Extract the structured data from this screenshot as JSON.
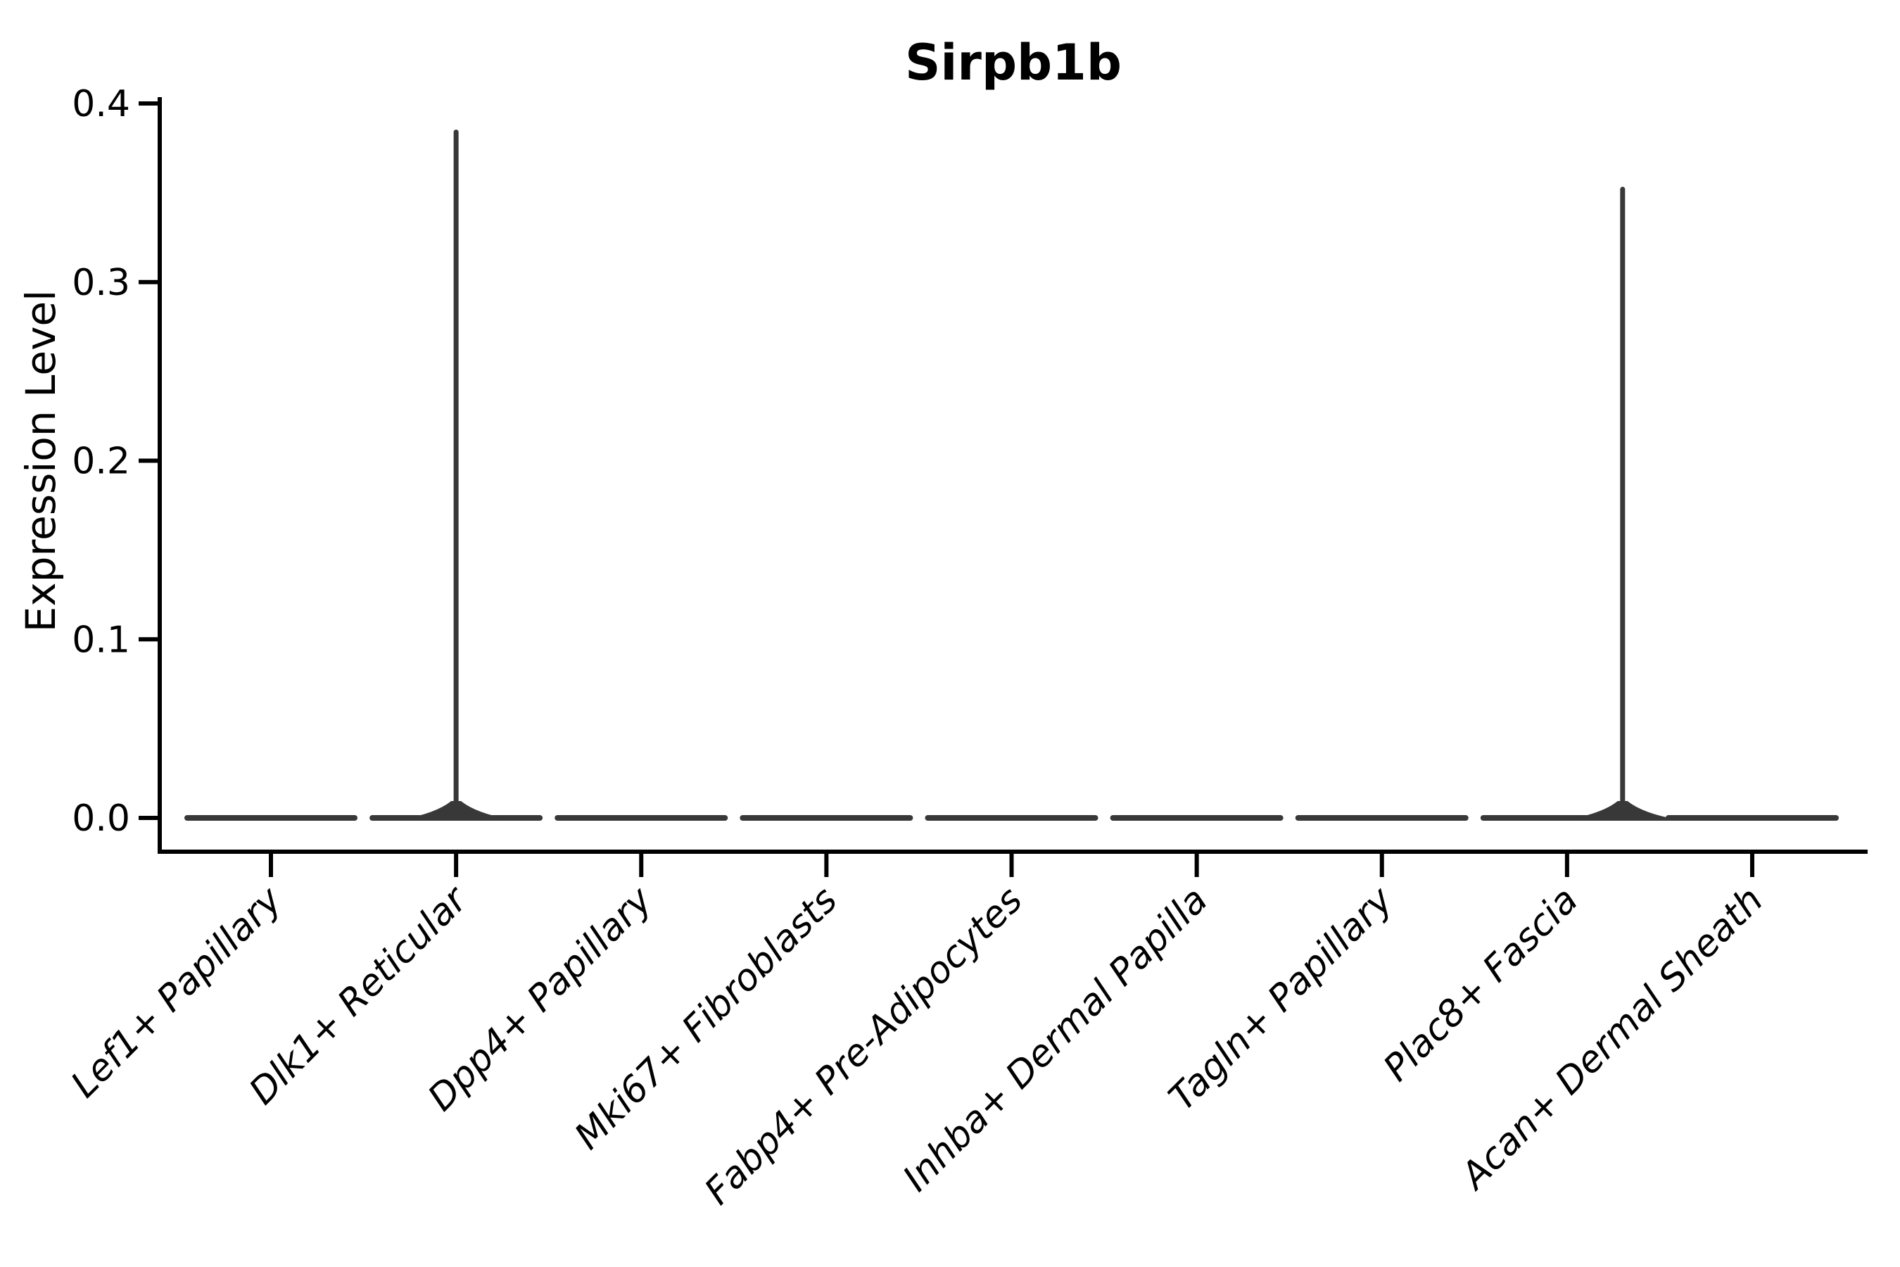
{
  "chart_data": {
    "type": "violin",
    "title": "Sirpb1b",
    "xlabel": "",
    "ylabel": "Expression Level",
    "yticks": [
      0.0,
      0.1,
      0.2,
      0.3,
      0.4
    ],
    "ylim": [
      -0.019,
      0.409
    ],
    "grid": false,
    "legend_position": "none",
    "categories": [
      "Lef1+ Papillary",
      "Dlk1+ Reticular",
      "Dpp4+ Papillary",
      "Mki67+ Fibroblasts",
      "Fabp4+ Pre-Adipocytes",
      "Inhba+ Dermal Papilla",
      "Tagln+ Papillary",
      "Plac8+ Fascia",
      "Acan+ Dermal Sheath"
    ],
    "violins": [
      {
        "category": "Lef1+ Papillary",
        "body_value": 0.0,
        "max": 0.0,
        "spike_offset_frac": 0.0
      },
      {
        "category": "Dlk1+ Reticular",
        "body_value": 0.0,
        "max": 0.384,
        "spike_offset_frac": 0.0
      },
      {
        "category": "Dpp4+ Papillary",
        "body_value": 0.0,
        "max": 0.0,
        "spike_offset_frac": 0.0
      },
      {
        "category": "Mki67+ Fibroblasts",
        "body_value": 0.0,
        "max": 0.0,
        "spike_offset_frac": 0.0
      },
      {
        "category": "Fabp4+ Pre-Adipocytes",
        "body_value": 0.0,
        "max": 0.0,
        "spike_offset_frac": 0.0
      },
      {
        "category": "Inhba+ Dermal Papilla",
        "body_value": 0.0,
        "max": 0.0,
        "spike_offset_frac": 0.0
      },
      {
        "category": "Tagln+ Papillary",
        "body_value": 0.0,
        "max": 0.0,
        "spike_offset_frac": 0.0
      },
      {
        "category": "Plac8+ Fascia",
        "body_value": 0.0,
        "max": 0.352,
        "spike_offset_frac": 0.3
      },
      {
        "category": "Acan+ Dermal Sheath",
        "body_value": 0.0,
        "max": 0.0,
        "spike_offset_frac": 0.0
      }
    ],
    "style": {
      "violin_color": "#383838",
      "axis_color": "#000000",
      "text_color": "#000000",
      "x_tick_label_style": "italic",
      "x_tick_label_rotation_deg": 45,
      "title_weight": "bold"
    }
  }
}
